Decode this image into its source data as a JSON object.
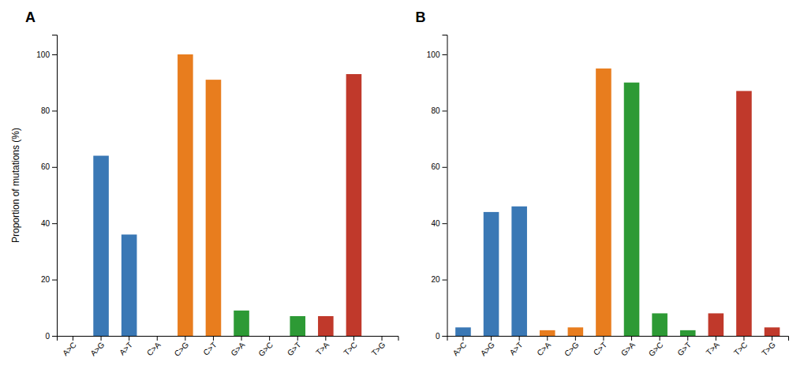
{
  "chart_data": [
    {
      "type": "bar",
      "title": "A",
      "categories": [
        "A>C",
        "A>G",
        "A>T",
        "C>A",
        "C>G",
        "C>T",
        "G>A",
        "G>C",
        "G>T",
        "T>A",
        "T>C",
        "T>G"
      ],
      "values": [
        0,
        64,
        36,
        0,
        100,
        91,
        9,
        0,
        7,
        7,
        93,
        0
      ],
      "colors": [
        "#3a78b5",
        "#3a78b5",
        "#3a78b5",
        "#e87d1e",
        "#e87d1e",
        "#e87d1e",
        "#2d9a35",
        "#2d9a35",
        "#2d9a35",
        "#c0392b",
        "#c0392b",
        "#c0392b"
      ],
      "ylabel": "Proportion of mutations (%)",
      "ylim": [
        0,
        107
      ],
      "yticks": [
        0,
        20,
        40,
        60,
        80,
        100
      ],
      "grid": false
    },
    {
      "type": "bar",
      "title": "B",
      "categories": [
        "A>C",
        "A>G",
        "A>T",
        "C>A",
        "C>G",
        "C>T",
        "G>A",
        "G>C",
        "G>T",
        "T>A",
        "T>C",
        "T>G"
      ],
      "values": [
        3,
        44,
        46,
        2,
        3,
        95,
        90,
        8,
        2,
        8,
        87,
        3
      ],
      "colors": [
        "#3a78b5",
        "#3a78b5",
        "#3a78b5",
        "#e87d1e",
        "#e87d1e",
        "#e87d1e",
        "#2d9a35",
        "#2d9a35",
        "#2d9a35",
        "#c0392b",
        "#c0392b",
        "#c0392b"
      ],
      "ylim": [
        0,
        107
      ],
      "yticks": [
        0,
        20,
        40,
        60,
        80,
        100
      ],
      "grid": false
    }
  ]
}
